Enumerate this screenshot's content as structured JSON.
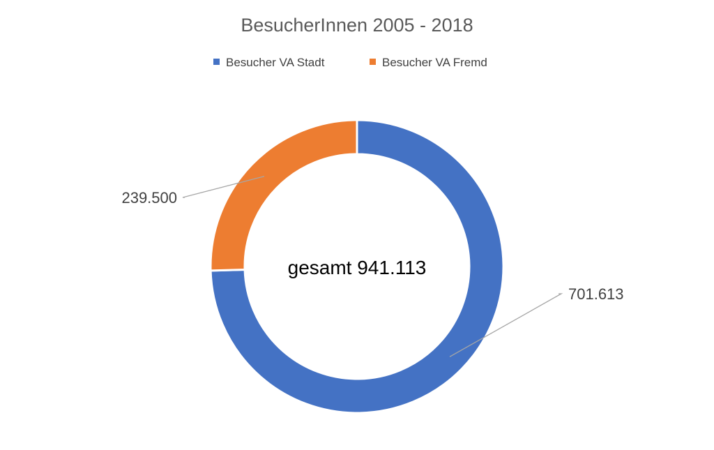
{
  "chart_data": {
    "type": "pie",
    "subtype": "doughnut",
    "title": "BesucherInnen 2005 - 2018",
    "center_label": "gesamt 941.113",
    "legend_position": "top",
    "categories": [
      "Besucher VA Stadt",
      "Besucher VA Fremd"
    ],
    "values": [
      701613,
      239500
    ],
    "value_labels": [
      "701.613",
      "239.500"
    ],
    "colors": [
      "#4472C4",
      "#ED7D31"
    ]
  }
}
